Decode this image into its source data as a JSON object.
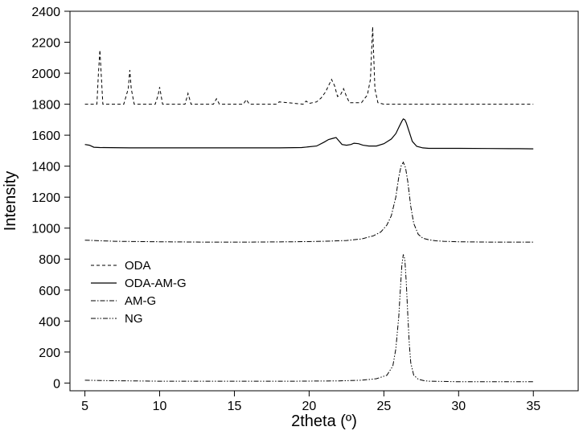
{
  "chart_data": {
    "type": "line",
    "title": "",
    "xlabel": "2theta (º)",
    "ylabel": "Intensity",
    "xlim": [
      4,
      38
    ],
    "ylim": [
      -50,
      2400
    ],
    "xticks": [
      5,
      10,
      15,
      20,
      25,
      30,
      35
    ],
    "yticks": [
      0,
      200,
      400,
      600,
      800,
      1000,
      1200,
      1400,
      1600,
      1800,
      2000,
      2200,
      2400
    ],
    "grid": false,
    "legend": "center-left",
    "colors": {
      "line": "#000000",
      "axis": "#000000",
      "background": "#ffffff"
    },
    "series": [
      {
        "name": "ODA",
        "style": "dash",
        "x": [
          5.0,
          5.8,
          5.9,
          6.0,
          6.1,
          6.2,
          7.6,
          7.9,
          8.0,
          8.1,
          8.3,
          9.7,
          9.9,
          10.0,
          10.2,
          11.7,
          11.9,
          12.1,
          13.6,
          13.8,
          14.0,
          15.6,
          15.8,
          16.0,
          17.8,
          18.0,
          19.6,
          19.8,
          20.0,
          20.5,
          20.8,
          21.1,
          21.3,
          21.5,
          21.7,
          21.9,
          22.1,
          22.3,
          22.5,
          22.7,
          23.5,
          23.9,
          24.1,
          24.25,
          24.4,
          24.6,
          25.0,
          26.0,
          27.0,
          28.0,
          30.0,
          32.0,
          34.0,
          35.0
        ],
        "y": [
          1800,
          1800,
          1990,
          2150,
          1980,
          1800,
          1800,
          1900,
          2020,
          1900,
          1800,
          1800,
          1860,
          1910,
          1800,
          1800,
          1870,
          1800,
          1800,
          1835,
          1800,
          1800,
          1830,
          1800,
          1800,
          1815,
          1800,
          1820,
          1805,
          1815,
          1840,
          1880,
          1920,
          1960,
          1920,
          1850,
          1860,
          1900,
          1850,
          1810,
          1810,
          1860,
          1960,
          2300,
          1900,
          1810,
          1800,
          1800,
          1800,
          1800,
          1800,
          1800,
          1800,
          1800
        ]
      },
      {
        "name": "ODA-AM-G",
        "style": "solid",
        "x": [
          5.0,
          5.3,
          5.6,
          6.0,
          8.0,
          10.0,
          12.0,
          14.0,
          16.0,
          18.0,
          19.5,
          20.5,
          21.0,
          21.3,
          21.6,
          21.8,
          22.0,
          22.2,
          22.5,
          22.8,
          23.0,
          23.3,
          23.6,
          24.0,
          24.5,
          25.0,
          25.5,
          25.8,
          26.0,
          26.2,
          26.3,
          26.4,
          26.5,
          26.7,
          26.9,
          27.2,
          27.6,
          28.0,
          29.0,
          30.0,
          32.0,
          34.0,
          35.0
        ],
        "y": [
          1540,
          1535,
          1522,
          1520,
          1518,
          1518,
          1518,
          1518,
          1518,
          1518,
          1520,
          1530,
          1555,
          1572,
          1580,
          1585,
          1562,
          1540,
          1535,
          1540,
          1548,
          1545,
          1535,
          1530,
          1530,
          1545,
          1575,
          1610,
          1650,
          1690,
          1705,
          1700,
          1680,
          1620,
          1560,
          1528,
          1518,
          1515,
          1515,
          1515,
          1514,
          1513,
          1512
        ]
      },
      {
        "name": "AM-G",
        "style": "dash-dot",
        "x": [
          5.0,
          7.0,
          10.0,
          13.0,
          16.0,
          19.0,
          21.0,
          22.5,
          23.5,
          24.3,
          24.8,
          25.2,
          25.5,
          25.8,
          26.0,
          26.15,
          26.3,
          26.45,
          26.6,
          26.8,
          27.0,
          27.3,
          27.6,
          28.0,
          28.5,
          29.0,
          30.0,
          32.0,
          34.0,
          35.0
        ],
        "y": [
          922,
          915,
          912,
          910,
          910,
          912,
          915,
          920,
          930,
          950,
          975,
          1020,
          1080,
          1200,
          1330,
          1400,
          1425,
          1390,
          1300,
          1140,
          1030,
          960,
          935,
          925,
          918,
          915,
          912,
          910,
          910,
          910
        ]
      },
      {
        "name": "NG",
        "style": "dash-dot-dot",
        "x": [
          5.0,
          7.0,
          10.0,
          13.0,
          16.0,
          19.0,
          22.0,
          23.5,
          24.5,
          25.2,
          25.6,
          25.8,
          26.0,
          26.1,
          26.2,
          26.3,
          26.4,
          26.5,
          26.6,
          26.7,
          26.8,
          27.0,
          27.3,
          27.7,
          28.0,
          29.0,
          30.0,
          32.0,
          34.0,
          35.0
        ],
        "y": [
          18,
          15,
          12,
          12,
          12,
          12,
          14,
          18,
          28,
          50,
          110,
          220,
          430,
          600,
          760,
          830,
          800,
          650,
          440,
          250,
          130,
          50,
          25,
          15,
          12,
          10,
          8,
          8,
          8,
          8
        ]
      }
    ]
  }
}
